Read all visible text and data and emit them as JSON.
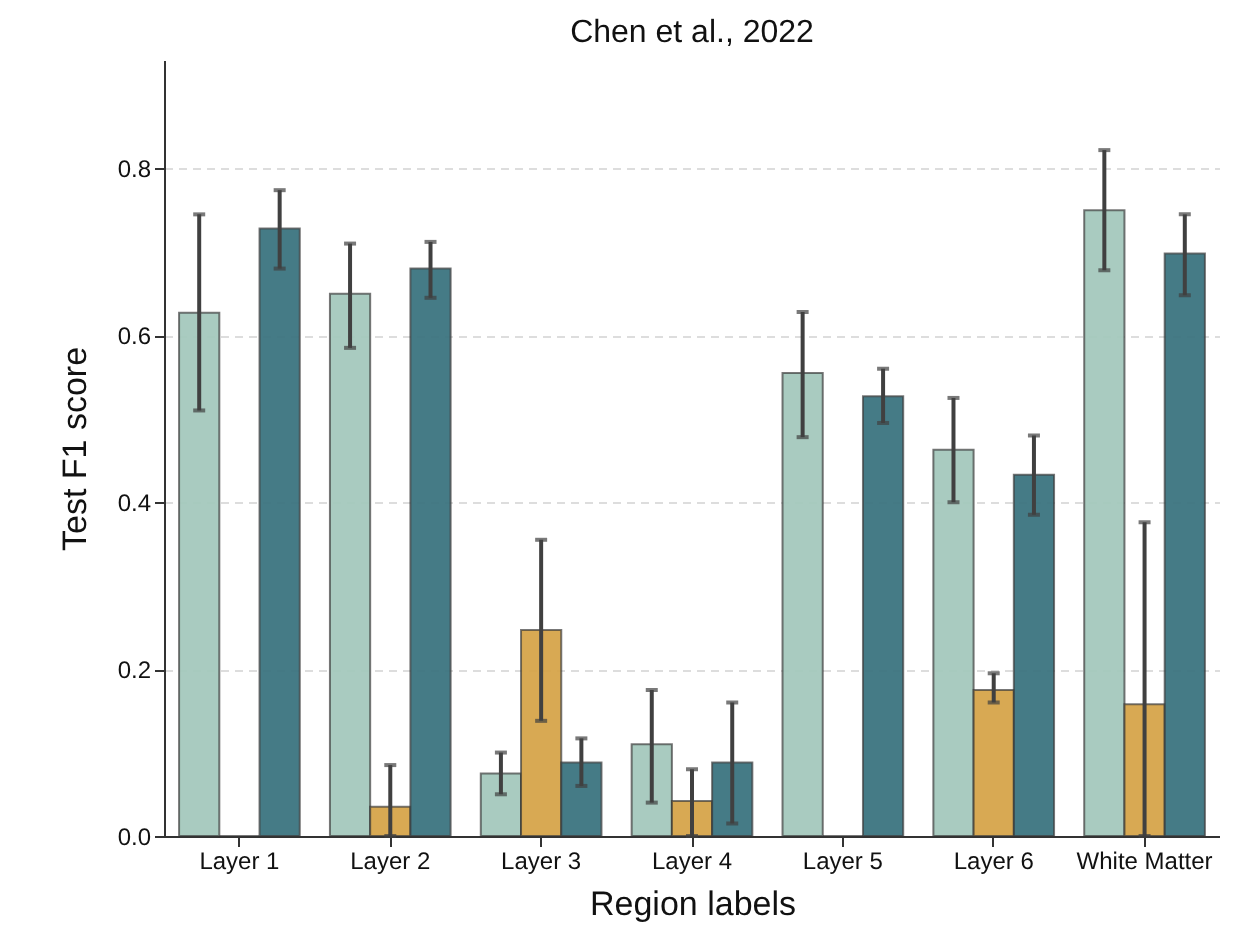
{
  "chart_data": {
    "type": "bar",
    "title": "Chen et al., 2022",
    "xlabel": "Region labels",
    "ylabel": "Test F1 score",
    "categories": [
      "Layer 1",
      "Layer 2",
      "Layer 3",
      "Layer 4",
      "Layer 5",
      "Layer 6",
      "White Matter"
    ],
    "series": [
      {
        "color": "#a5c9bd",
        "values": [
          0.627,
          0.65,
          0.075,
          0.11,
          0.555,
          0.463,
          0.75
        ],
        "errors": [
          [
            0.51,
            0.745
          ],
          [
            0.585,
            0.71
          ],
          [
            0.05,
            0.1
          ],
          [
            0.04,
            0.175
          ],
          [
            0.478,
            0.628
          ],
          [
            0.4,
            0.525
          ],
          [
            0.678,
            0.822
          ]
        ]
      },
      {
        "color": "#d6a54a",
        "values": [
          0,
          0.035,
          0.247,
          0.042,
          0,
          0.175,
          0.158
        ],
        "errors": [
          null,
          [
            0,
            0.085
          ],
          [
            0.138,
            0.355
          ],
          [
            0,
            0.08
          ],
          null,
          [
            0.16,
            0.195
          ],
          [
            0,
            0.376
          ]
        ]
      },
      {
        "color": "#3c7480",
        "values": [
          0.728,
          0.68,
          0.088,
          0.088,
          0.527,
          0.433,
          0.698
        ],
        "errors": [
          [
            0.68,
            0.774
          ],
          [
            0.645,
            0.712
          ],
          [
            0.06,
            0.117
          ],
          [
            0.015,
            0.16
          ],
          [
            0.495,
            0.56
          ],
          [
            0.385,
            0.48
          ],
          [
            0.648,
            0.745
          ]
        ]
      }
    ],
    "ylim": [
      0,
      0.93
    ],
    "yticks": [
      {
        "value": 0,
        "label": "0.0"
      },
      {
        "value": 0.2,
        "label": "0.2"
      },
      {
        "value": 0.4,
        "label": "0.4"
      },
      {
        "value": 0.6,
        "label": "0.6"
      },
      {
        "value": 0.8,
        "label": "0.8"
      }
    ],
    "grid": "y"
  }
}
